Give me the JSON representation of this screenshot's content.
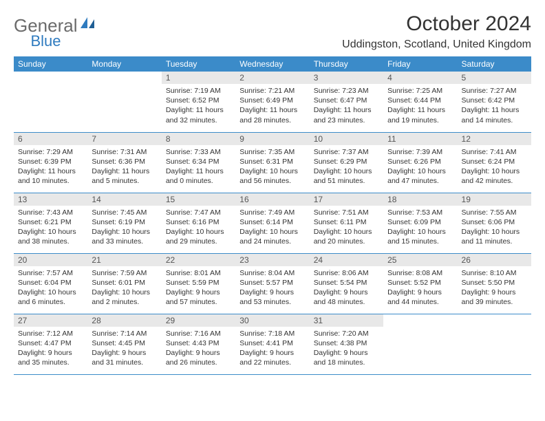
{
  "logo": {
    "text_gray": "General",
    "text_blue": "Blue",
    "gray_color": "#6b6b6b",
    "blue_color": "#2f7bbf"
  },
  "header": {
    "month_title": "October 2024",
    "location": "Uddingston, Scotland, United Kingdom"
  },
  "colors": {
    "header_bg": "#3b8bc9",
    "header_text": "#ffffff",
    "daynum_bg": "#e8e8e8",
    "daynum_text": "#555555",
    "body_text": "#333333",
    "row_border": "#3b8bc9",
    "page_bg": "#ffffff"
  },
  "typography": {
    "month_title_size": 30,
    "location_size": 16,
    "day_header_size": 12,
    "daynum_size": 12,
    "dayinfo_size": 10.5,
    "font_family": "Arial"
  },
  "day_headers": [
    "Sunday",
    "Monday",
    "Tuesday",
    "Wednesday",
    "Thursday",
    "Friday",
    "Saturday"
  ],
  "weeks": [
    [
      null,
      null,
      {
        "n": "1",
        "sr": "Sunrise: 7:19 AM",
        "ss": "Sunset: 6:52 PM",
        "dl": "Daylight: 11 hours and 32 minutes."
      },
      {
        "n": "2",
        "sr": "Sunrise: 7:21 AM",
        "ss": "Sunset: 6:49 PM",
        "dl": "Daylight: 11 hours and 28 minutes."
      },
      {
        "n": "3",
        "sr": "Sunrise: 7:23 AM",
        "ss": "Sunset: 6:47 PM",
        "dl": "Daylight: 11 hours and 23 minutes."
      },
      {
        "n": "4",
        "sr": "Sunrise: 7:25 AM",
        "ss": "Sunset: 6:44 PM",
        "dl": "Daylight: 11 hours and 19 minutes."
      },
      {
        "n": "5",
        "sr": "Sunrise: 7:27 AM",
        "ss": "Sunset: 6:42 PM",
        "dl": "Daylight: 11 hours and 14 minutes."
      }
    ],
    [
      {
        "n": "6",
        "sr": "Sunrise: 7:29 AM",
        "ss": "Sunset: 6:39 PM",
        "dl": "Daylight: 11 hours and 10 minutes."
      },
      {
        "n": "7",
        "sr": "Sunrise: 7:31 AM",
        "ss": "Sunset: 6:36 PM",
        "dl": "Daylight: 11 hours and 5 minutes."
      },
      {
        "n": "8",
        "sr": "Sunrise: 7:33 AM",
        "ss": "Sunset: 6:34 PM",
        "dl": "Daylight: 11 hours and 0 minutes."
      },
      {
        "n": "9",
        "sr": "Sunrise: 7:35 AM",
        "ss": "Sunset: 6:31 PM",
        "dl": "Daylight: 10 hours and 56 minutes."
      },
      {
        "n": "10",
        "sr": "Sunrise: 7:37 AM",
        "ss": "Sunset: 6:29 PM",
        "dl": "Daylight: 10 hours and 51 minutes."
      },
      {
        "n": "11",
        "sr": "Sunrise: 7:39 AM",
        "ss": "Sunset: 6:26 PM",
        "dl": "Daylight: 10 hours and 47 minutes."
      },
      {
        "n": "12",
        "sr": "Sunrise: 7:41 AM",
        "ss": "Sunset: 6:24 PM",
        "dl": "Daylight: 10 hours and 42 minutes."
      }
    ],
    [
      {
        "n": "13",
        "sr": "Sunrise: 7:43 AM",
        "ss": "Sunset: 6:21 PM",
        "dl": "Daylight: 10 hours and 38 minutes."
      },
      {
        "n": "14",
        "sr": "Sunrise: 7:45 AM",
        "ss": "Sunset: 6:19 PM",
        "dl": "Daylight: 10 hours and 33 minutes."
      },
      {
        "n": "15",
        "sr": "Sunrise: 7:47 AM",
        "ss": "Sunset: 6:16 PM",
        "dl": "Daylight: 10 hours and 29 minutes."
      },
      {
        "n": "16",
        "sr": "Sunrise: 7:49 AM",
        "ss": "Sunset: 6:14 PM",
        "dl": "Daylight: 10 hours and 24 minutes."
      },
      {
        "n": "17",
        "sr": "Sunrise: 7:51 AM",
        "ss": "Sunset: 6:11 PM",
        "dl": "Daylight: 10 hours and 20 minutes."
      },
      {
        "n": "18",
        "sr": "Sunrise: 7:53 AM",
        "ss": "Sunset: 6:09 PM",
        "dl": "Daylight: 10 hours and 15 minutes."
      },
      {
        "n": "19",
        "sr": "Sunrise: 7:55 AM",
        "ss": "Sunset: 6:06 PM",
        "dl": "Daylight: 10 hours and 11 minutes."
      }
    ],
    [
      {
        "n": "20",
        "sr": "Sunrise: 7:57 AM",
        "ss": "Sunset: 6:04 PM",
        "dl": "Daylight: 10 hours and 6 minutes."
      },
      {
        "n": "21",
        "sr": "Sunrise: 7:59 AM",
        "ss": "Sunset: 6:01 PM",
        "dl": "Daylight: 10 hours and 2 minutes."
      },
      {
        "n": "22",
        "sr": "Sunrise: 8:01 AM",
        "ss": "Sunset: 5:59 PM",
        "dl": "Daylight: 9 hours and 57 minutes."
      },
      {
        "n": "23",
        "sr": "Sunrise: 8:04 AM",
        "ss": "Sunset: 5:57 PM",
        "dl": "Daylight: 9 hours and 53 minutes."
      },
      {
        "n": "24",
        "sr": "Sunrise: 8:06 AM",
        "ss": "Sunset: 5:54 PM",
        "dl": "Daylight: 9 hours and 48 minutes."
      },
      {
        "n": "25",
        "sr": "Sunrise: 8:08 AM",
        "ss": "Sunset: 5:52 PM",
        "dl": "Daylight: 9 hours and 44 minutes."
      },
      {
        "n": "26",
        "sr": "Sunrise: 8:10 AM",
        "ss": "Sunset: 5:50 PM",
        "dl": "Daylight: 9 hours and 39 minutes."
      }
    ],
    [
      {
        "n": "27",
        "sr": "Sunrise: 7:12 AM",
        "ss": "Sunset: 4:47 PM",
        "dl": "Daylight: 9 hours and 35 minutes."
      },
      {
        "n": "28",
        "sr": "Sunrise: 7:14 AM",
        "ss": "Sunset: 4:45 PM",
        "dl": "Daylight: 9 hours and 31 minutes."
      },
      {
        "n": "29",
        "sr": "Sunrise: 7:16 AM",
        "ss": "Sunset: 4:43 PM",
        "dl": "Daylight: 9 hours and 26 minutes."
      },
      {
        "n": "30",
        "sr": "Sunrise: 7:18 AM",
        "ss": "Sunset: 4:41 PM",
        "dl": "Daylight: 9 hours and 22 minutes."
      },
      {
        "n": "31",
        "sr": "Sunrise: 7:20 AM",
        "ss": "Sunset: 4:38 PM",
        "dl": "Daylight: 9 hours and 18 minutes."
      },
      null,
      null
    ]
  ]
}
